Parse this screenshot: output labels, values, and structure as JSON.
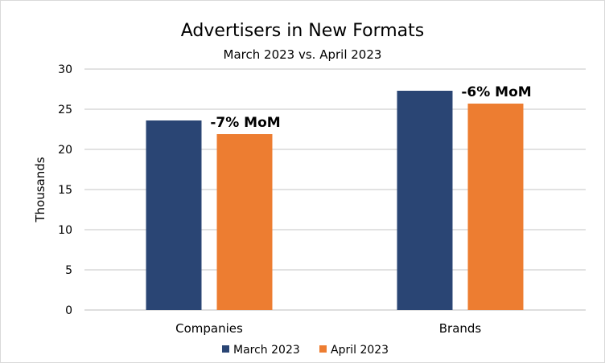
{
  "chart_data": {
    "type": "bar",
    "title": "Advertisers in New Formats",
    "subtitle": "March 2023 vs. April 2023",
    "xlabel": "",
    "ylabel": "Thousands",
    "ylim": [
      0,
      30
    ],
    "yticks": [
      0,
      5,
      10,
      15,
      20,
      25,
      30
    ],
    "grid": true,
    "legend": "bottom",
    "categories": [
      "Companies",
      "Brands"
    ],
    "series": [
      {
        "name": "March 2023",
        "color": "#2a4574",
        "values": [
          23.6,
          27.3
        ]
      },
      {
        "name": "April 2023",
        "color": "#ed7d31",
        "values": [
          21.9,
          25.7
        ]
      }
    ],
    "annotations": [
      "-7% MoM",
      "-6% MoM"
    ]
  }
}
